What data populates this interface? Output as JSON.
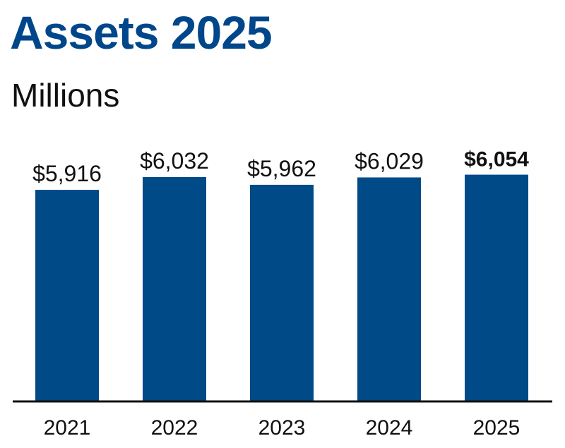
{
  "chart_data": {
    "type": "bar",
    "title": "Assets 2025",
    "subtitle": "Millions",
    "categories": [
      "2021",
      "2022",
      "2023",
      "2024",
      "2025"
    ],
    "values": [
      5916,
      6032,
      5962,
      6029,
      6054
    ],
    "data_labels": [
      "$5,916",
      "$6,032",
      "$5,962",
      "$6,029",
      "$6,054"
    ],
    "highlight_index": 4,
    "ylim": [
      4000,
      6200
    ],
    "grid": false,
    "colors": {
      "bar": "#004a87",
      "title": "#00468a",
      "axis": "#111111"
    }
  }
}
